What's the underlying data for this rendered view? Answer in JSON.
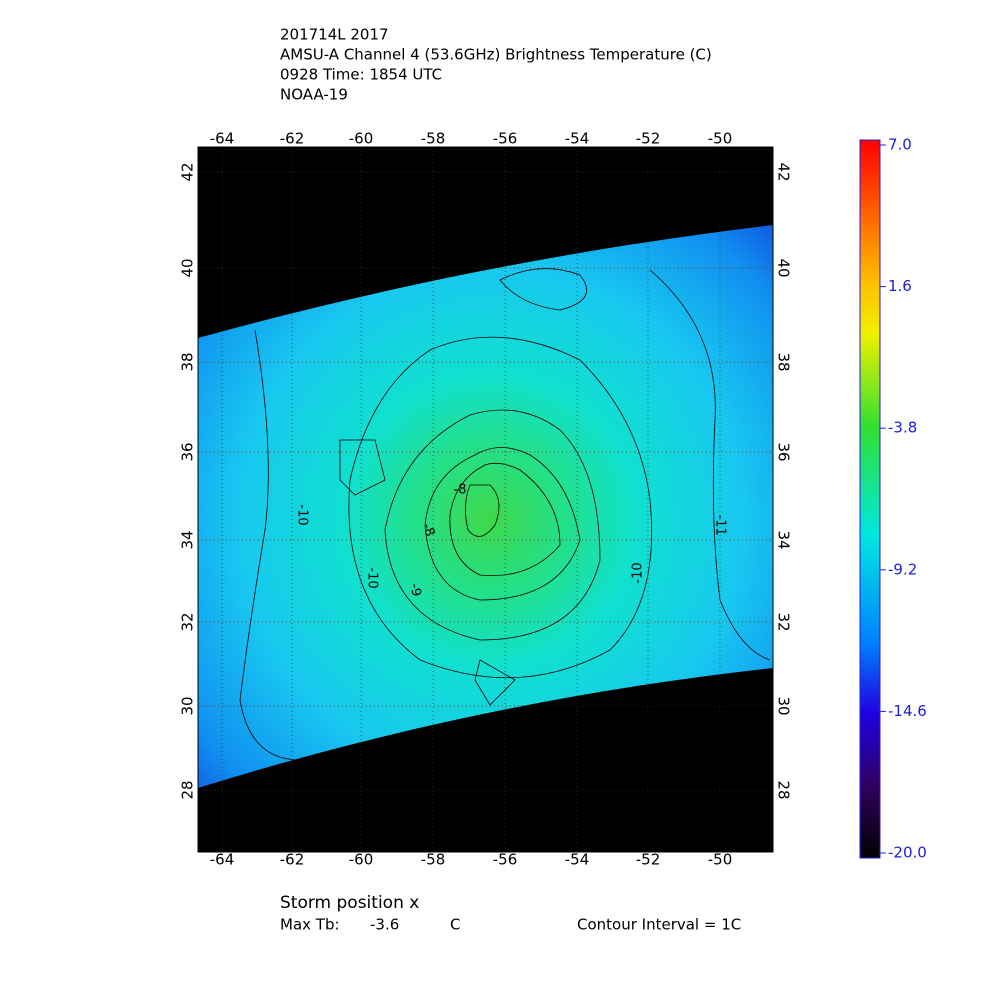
{
  "header": {
    "lines": [
      "201714L 2017",
      "AMSU-A Channel 4 (53.6GHz) Brightness Temperature (C)",
      "0928 Time: 1854 UTC",
      "NOAA-19"
    ]
  },
  "map": {
    "lon_ticks": [
      "-64",
      "-62",
      "-60",
      "-58",
      "-56",
      "-54",
      "-52",
      "-50"
    ],
    "lat_ticks": [
      "28",
      "30",
      "32",
      "34",
      "36",
      "38",
      "40",
      "42"
    ],
    "contour_labels": [
      "-10",
      "-10",
      "-9",
      "-8",
      "-8",
      "-10",
      "-11"
    ]
  },
  "colorbar": {
    "ticks": [
      "7.0",
      "1.6",
      "-3.8",
      "-9.2",
      "-14.6",
      "-20.0"
    ]
  },
  "footer": {
    "storm_position": "Storm position x",
    "max_tb_label": "Max Tb:",
    "max_tb_value": "-3.6",
    "max_tb_unit": "C",
    "contour_interval": "Contour Interval = 1C"
  }
}
